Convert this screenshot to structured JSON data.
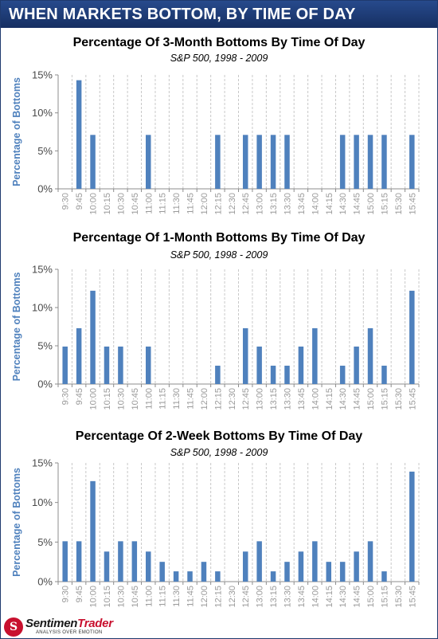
{
  "header": {
    "title": "WHEN MARKETS BOTTOM, BY TIME OF DAY"
  },
  "footer": {
    "logo_text_main": "Sentimen",
    "logo_text_accent": "Trader",
    "logo_tagline": "ANALYSIS OVER EMOTION",
    "logo_letter": "S"
  },
  "colors": {
    "bar": "#4f81bd",
    "header_bg": "#1f3a6e",
    "axis_text": "#4f81bd",
    "tick_text": "#9a9a9a"
  },
  "chart_data": [
    {
      "type": "bar",
      "title": "Percentage Of 3-Month Bottoms By Time Of Day",
      "subtitle": "S&P 500, 1998 - 2009",
      "xlabel": "",
      "ylabel": "Percentage of Bottoms",
      "ylim": [
        0,
        15
      ],
      "yticks": [
        "0%",
        "5%",
        "10%",
        "15%"
      ],
      "grid": "vertical dashed",
      "categories": [
        "9:30",
        "9:45",
        "10:00",
        "10:15",
        "10:30",
        "10:45",
        "11:00",
        "11:15",
        "11:30",
        "11:45",
        "12:00",
        "12:15",
        "12:30",
        "12:45",
        "13:00",
        "13:15",
        "13:30",
        "13:45",
        "14:00",
        "14:15",
        "14:30",
        "14:45",
        "15:00",
        "15:15",
        "15:30",
        "15:45"
      ],
      "values": [
        0,
        14.3,
        7.1,
        0,
        0,
        0,
        7.1,
        0,
        0,
        0,
        0,
        7.1,
        0,
        7.1,
        7.1,
        7.1,
        7.1,
        0,
        0,
        0,
        7.1,
        7.1,
        7.1,
        7.1,
        0,
        7.1
      ]
    },
    {
      "type": "bar",
      "title": "Percentage Of 1-Month Bottoms By Time Of Day",
      "subtitle": "S&P 500, 1998 - 2009",
      "xlabel": "",
      "ylabel": "Percentage of Bottoms",
      "ylim": [
        0,
        15
      ],
      "yticks": [
        "0%",
        "5%",
        "10%",
        "15%"
      ],
      "grid": "vertical dashed",
      "categories": [
        "9:30",
        "9:45",
        "10:00",
        "10:15",
        "10:30",
        "10:45",
        "11:00",
        "11:15",
        "11:30",
        "11:45",
        "12:00",
        "12:15",
        "12:30",
        "12:45",
        "13:00",
        "13:15",
        "13:30",
        "13:45",
        "14:00",
        "14:15",
        "14:30",
        "14:45",
        "15:00",
        "15:15",
        "15:30",
        "15:45"
      ],
      "values": [
        4.9,
        7.3,
        12.2,
        4.9,
        4.9,
        0,
        4.9,
        0,
        0,
        0,
        0,
        2.4,
        0,
        7.3,
        4.9,
        2.4,
        2.4,
        4.9,
        7.3,
        0,
        2.4,
        4.9,
        7.3,
        2.4,
        0,
        12.2
      ]
    },
    {
      "type": "bar",
      "title": "Percentage Of 2-Week Bottoms By Time Of Day",
      "subtitle": "S&P 500, 1998 - 2009",
      "xlabel": "",
      "ylabel": "Percentage of Bottoms",
      "ylim": [
        0,
        15
      ],
      "yticks": [
        "0%",
        "5%",
        "10%",
        "15%"
      ],
      "grid": "vertical dashed",
      "categories": [
        "9:30",
        "9:45",
        "10:00",
        "10:15",
        "10:30",
        "10:45",
        "11:00",
        "11:15",
        "11:30",
        "11:45",
        "12:00",
        "12:15",
        "12:30",
        "12:45",
        "13:00",
        "13:15",
        "13:30",
        "13:45",
        "14:00",
        "14:15",
        "14:30",
        "14:45",
        "15:00",
        "15:15",
        "15:30",
        "15:45"
      ],
      "values": [
        5.1,
        5.1,
        12.7,
        3.8,
        5.1,
        5.1,
        3.8,
        2.5,
        1.3,
        1.3,
        2.5,
        1.3,
        0,
        3.8,
        5.1,
        1.3,
        2.5,
        3.8,
        5.1,
        2.5,
        2.5,
        3.8,
        5.1,
        1.3,
        0,
        13.9
      ]
    }
  ]
}
